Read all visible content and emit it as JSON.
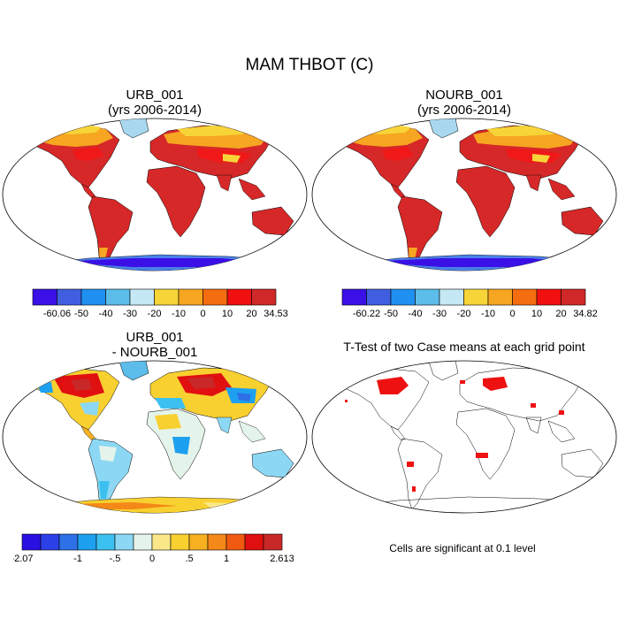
{
  "title": "MAM THBOT (C)",
  "panels": {
    "p1": {
      "title_line1": "URB_001",
      "title_line2": "(yrs 2006-2014)"
    },
    "p2": {
      "title_line1": "NOURB_001",
      "title_line2": "(yrs 2006-2014)"
    },
    "p3": {
      "title_line1": "URB_001",
      "title_line2": "- NOURB_001"
    },
    "p4": {
      "title_line1": "T-Test of two Case means at each grid point",
      "caption": "Cells are significant at 0.1 level"
    }
  },
  "colorbars": {
    "cb1": {
      "colors": [
        "#3a10e6",
        "#3f5fe0",
        "#1f90f0",
        "#5cbcea",
        "#c5e8f5",
        "#f7d438",
        "#f6a621",
        "#f46d10",
        "#f01010",
        "#d02828"
      ],
      "labels": [
        "-60.06",
        "-50",
        "-40",
        "-30",
        "-20",
        "-10",
        "0",
        "10",
        "20",
        "34.53"
      ]
    },
    "cb2": {
      "colors": [
        "#3a10e6",
        "#3f5fe0",
        "#1f90f0",
        "#5cbcea",
        "#c5e8f5",
        "#f7d438",
        "#f6a621",
        "#f46d10",
        "#f01010",
        "#d02828"
      ],
      "labels": [
        "-60.22",
        "-50",
        "-40",
        "-30",
        "-20",
        "-10",
        "0",
        "10",
        "20",
        "34.82"
      ]
    },
    "cb3": {
      "colors": [
        "#2a10e0",
        "#2c40e8",
        "#2e70e6",
        "#1da0f0",
        "#3cc0f0",
        "#8cd8f4",
        "#e4f4ea",
        "#fae888",
        "#f8d030",
        "#f6b020",
        "#f48818",
        "#f05a10",
        "#e01010",
        "#c82828"
      ],
      "labels": [
        "-2.07",
        "-1",
        "-.5",
        "0",
        ".5",
        "1",
        "2.613"
      ],
      "label_slots": [
        0,
        3,
        5,
        7,
        9,
        11,
        14
      ]
    }
  },
  "colors": {
    "warm": "#d62828",
    "hot": "#f01818",
    "orange": "#f47a18",
    "yellow": "#f7c830",
    "lightblue": "#a8d8f0",
    "blue": "#4a80e8",
    "sig": "#ee1111"
  }
}
